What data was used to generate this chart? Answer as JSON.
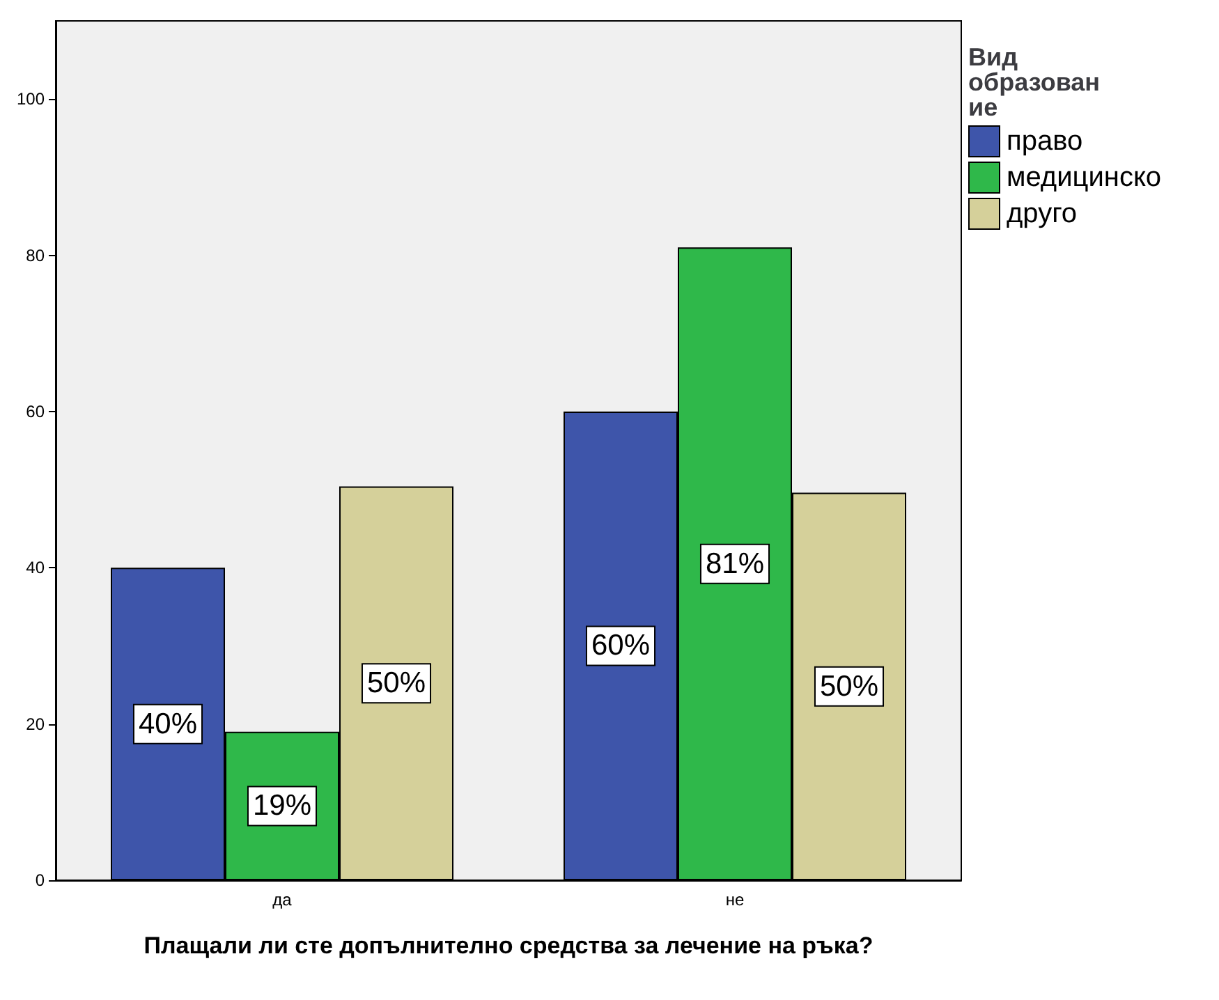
{
  "chart_data": {
    "type": "bar",
    "xlabel": "Плащали ли сте допълнително средства за лечение на ръка?",
    "legend_title": "Вид образование",
    "categories": [
      "да",
      "не"
    ],
    "series": [
      {
        "name": "право",
        "color": "#3e55aa",
        "values": [
          40,
          60
        ],
        "value_labels": [
          "40%",
          "60%"
        ]
      },
      {
        "name": "медицинско",
        "color": "#2fb84a",
        "values": [
          19,
          81
        ],
        "value_labels": [
          "19%",
          "81%"
        ]
      },
      {
        "name": "друго",
        "color": "#d5d09a",
        "values": [
          50.4,
          49.6
        ],
        "value_labels": [
          "50%",
          "50%"
        ]
      }
    ],
    "ylim": [
      0,
      110
    ],
    "yticks": [
      0,
      20,
      40,
      60,
      80,
      100
    ],
    "grid": false,
    "legend": "top right"
  }
}
